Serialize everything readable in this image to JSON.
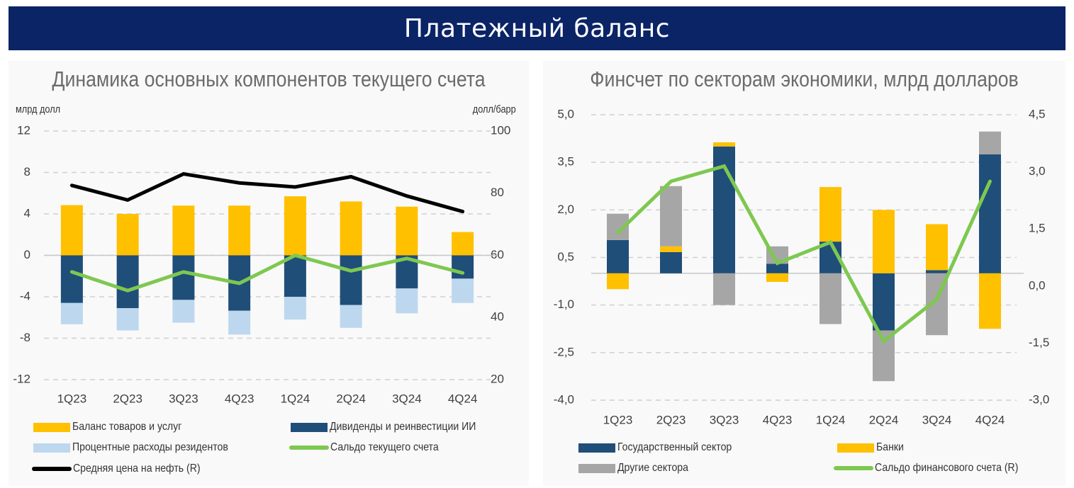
{
  "page": {
    "title": "Платежный баланс"
  },
  "colors": {
    "banner": "#0a2466",
    "gold": "#ffc000",
    "navy": "#1f4e79",
    "lightblue": "#bdd7ee",
    "green": "#7ec850",
    "black": "#000000",
    "grey": "#a6a6a6"
  },
  "chart_data": [
    {
      "type": "bar",
      "stacked": true,
      "title": "Динамика основных компонентов текущего счета",
      "ylabel": "млрд долл",
      "y2label": "долл/барр",
      "categories": [
        "1Q23",
        "2Q23",
        "3Q23",
        "4Q23",
        "1Q24",
        "2Q24",
        "3Q24",
        "4Q24"
      ],
      "ylim": [
        -12,
        12
      ],
      "yticks": [
        "12",
        "8",
        "4",
        "0",
        "-4",
        "-8",
        "-12"
      ],
      "y2lim": [
        20,
        100
      ],
      "y2ticks": [
        "100",
        "80",
        "60",
        "40",
        "20"
      ],
      "grid": true,
      "legend_position": "bottom",
      "series": [
        {
          "name": "Баланс товаров и услуг",
          "kind": "bar",
          "color": "#ffc000",
          "values": [
            4.85,
            4.0,
            4.8,
            4.8,
            5.7,
            5.2,
            4.7,
            2.25
          ]
        },
        {
          "name": "Дивиденды и реинвестиции ИИ",
          "kind": "bar",
          "color": "#1f4e79",
          "values": [
            -4.6,
            -5.1,
            -4.3,
            -5.35,
            -4.0,
            -4.8,
            -3.2,
            -2.25
          ]
        },
        {
          "name": "Процентные расходы резидентов",
          "kind": "bar",
          "color": "#bdd7ee",
          "values": [
            -2.05,
            -2.15,
            -2.2,
            -2.3,
            -2.2,
            -2.2,
            -2.4,
            -2.35
          ]
        },
        {
          "name": "Сальдо текущего счета",
          "kind": "line",
          "axis": "left",
          "color": "#7ec850",
          "values": [
            -1.6,
            -3.4,
            -1.6,
            -2.7,
            0.0,
            -1.5,
            -0.3,
            -1.7
          ]
        },
        {
          "name": "Средняя цена на нефть (R)",
          "kind": "line",
          "axis": "right",
          "color": "#000000",
          "values": [
            82.5,
            77.8,
            86.2,
            83.3,
            82.0,
            85.3,
            79.1,
            74.1
          ]
        }
      ],
      "legend": [
        {
          "label": "Баланс товаров и услуг",
          "kind": "box",
          "color": "#ffc000"
        },
        {
          "label": "Дивиденды и реинвестиции ИИ",
          "kind": "box",
          "color": "#1f4e79"
        },
        {
          "label": "Процентные расходы резидентов",
          "kind": "box",
          "color": "#bdd7ee"
        },
        {
          "label": "Сальдо текущего счета",
          "kind": "line",
          "color": "#7ec850"
        },
        {
          "label": "Средняя цена на нефть (R)",
          "kind": "line",
          "color": "#000000"
        }
      ]
    },
    {
      "type": "bar",
      "stacked": true,
      "title": "Финсчет по секторам экономики, млрд долларов",
      "categories": [
        "1Q23",
        "2Q23",
        "3Q23",
        "4Q23",
        "1Q24",
        "2Q24",
        "3Q24",
        "4Q24"
      ],
      "ylim": [
        -4.0,
        5.0
      ],
      "yticks": [
        "5,0",
        "3,5",
        "2,0",
        "0,5",
        "-1,0",
        "-2,5",
        "-4,0"
      ],
      "y2lim": [
        -3.0,
        4.5
      ],
      "y2ticks": [
        "4,5",
        "3,0",
        "1,5",
        "0,0",
        "-1,5",
        "-3,0"
      ],
      "grid": true,
      "legend_position": "bottom",
      "series": [
        {
          "name": "Государственный сектор",
          "kind": "bar",
          "color": "#1f4e79",
          "values": [
            1.05,
            0.67,
            4.0,
            0.3,
            1.0,
            -1.8,
            0.1,
            3.75
          ]
        },
        {
          "name": "Банки",
          "kind": "bar",
          "color": "#ffc000",
          "values": [
            -0.5,
            0.18,
            0.13,
            -0.27,
            1.72,
            2.0,
            1.45,
            -1.75
          ]
        },
        {
          "name": "Другие сектора",
          "kind": "bar",
          "color": "#a6a6a6",
          "values": [
            0.83,
            1.9,
            -1.0,
            0.55,
            -1.6,
            -1.6,
            -1.95,
            0.72
          ]
        },
        {
          "name": "Сальдо финансового счета (R)",
          "kind": "line",
          "axis": "right",
          "color": "#7ec850",
          "values": [
            1.4,
            2.75,
            3.15,
            0.6,
            1.15,
            -1.45,
            -0.35,
            2.75
          ]
        }
      ],
      "legend": [
        {
          "label": "Государственный сектор",
          "kind": "box",
          "color": "#1f4e79"
        },
        {
          "label": "Банки",
          "kind": "box",
          "color": "#ffc000"
        },
        {
          "label": "Другие сектора",
          "kind": "box",
          "color": "#a6a6a6"
        },
        {
          "label": "Сальдо финансового счета (R)",
          "kind": "line",
          "color": "#7ec850"
        }
      ]
    }
  ]
}
